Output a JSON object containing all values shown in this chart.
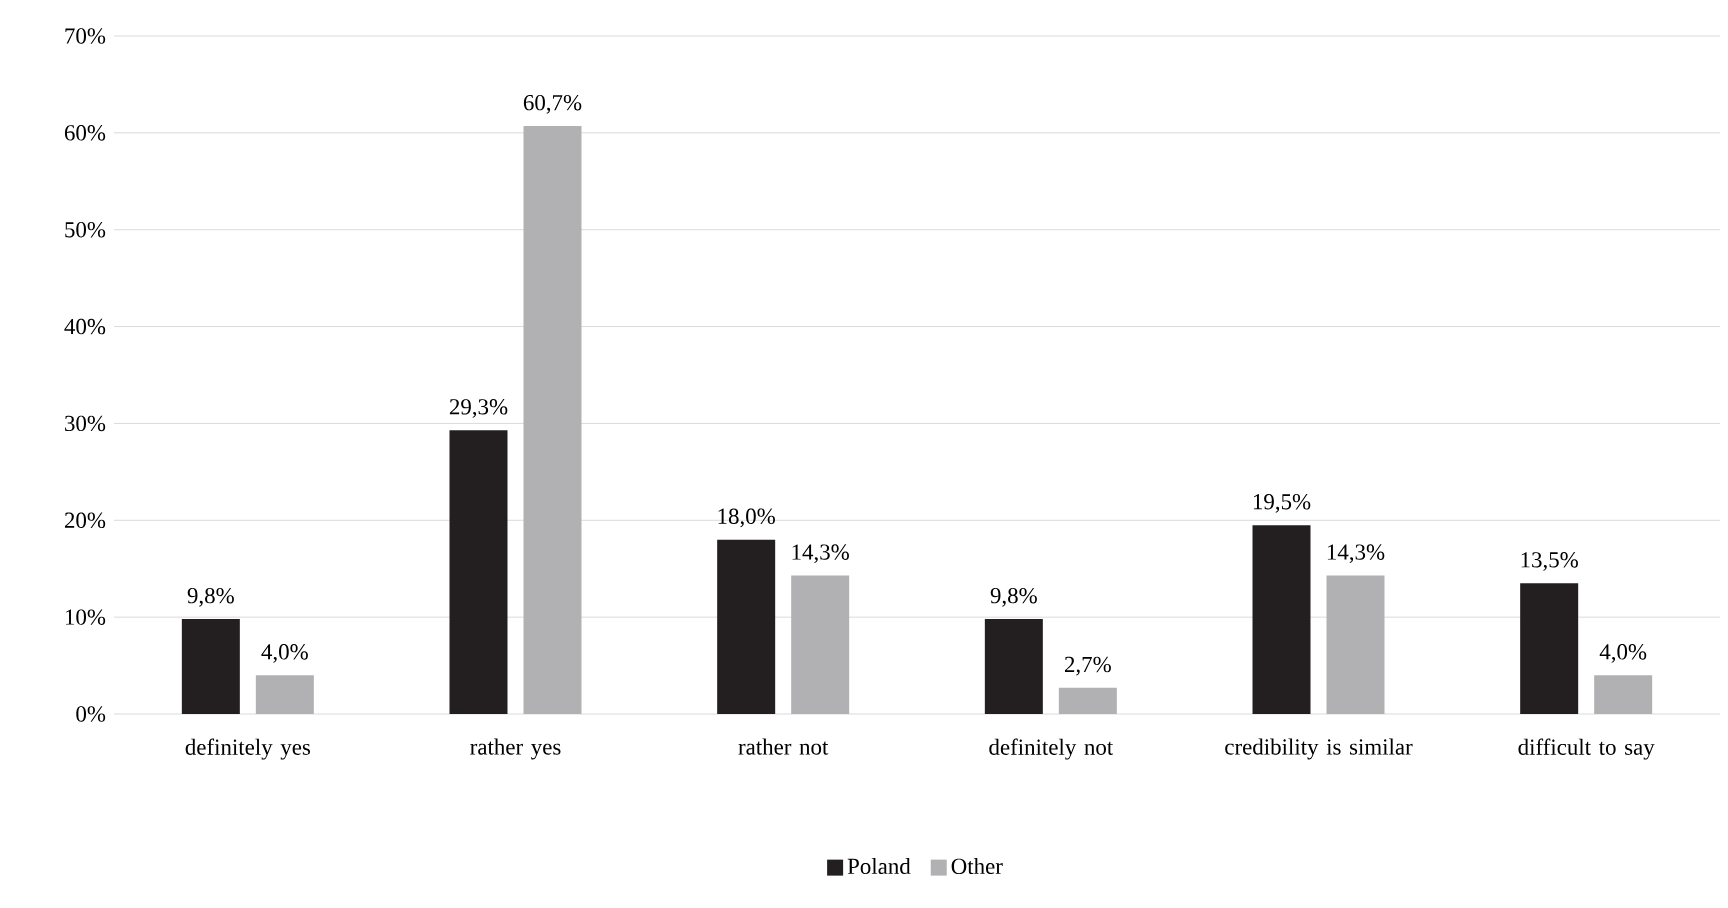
{
  "chart_data": {
    "type": "bar",
    "categories": [
      "definitely yes",
      "rather yes",
      "rather not",
      "definitely not",
      "credibility is similar",
      "difficult to say"
    ],
    "series": [
      {
        "name": "Poland",
        "color": "#231f20",
        "values": [
          9.8,
          29.3,
          18.0,
          9.8,
          19.5,
          13.5
        ],
        "value_labels": [
          "9,8%",
          "29,3%",
          "18,0%",
          "9,8%",
          "19,5%",
          "13,5%"
        ]
      },
      {
        "name": "Other",
        "color": "#b1b1b4",
        "values": [
          4.0,
          60.7,
          14.3,
          2.7,
          14.3,
          4.0
        ],
        "value_labels": [
          "4,0%",
          "60,7%",
          "14,3%",
          "2,7%",
          "14,3%",
          "4,0%"
        ]
      }
    ],
    "ylim": [
      0,
      70
    ],
    "yticks": [
      {
        "value": 0,
        "label": "0%"
      },
      {
        "value": 10,
        "label": "10%"
      },
      {
        "value": 20,
        "label": "20%"
      },
      {
        "value": 30,
        "label": "30%"
      },
      {
        "value": 40,
        "label": "40%"
      },
      {
        "value": 50,
        "label": "50%"
      },
      {
        "value": 60,
        "label": "60%"
      },
      {
        "value": 70,
        "label": "70%"
      }
    ],
    "grid": "y",
    "legend": "bottom"
  }
}
